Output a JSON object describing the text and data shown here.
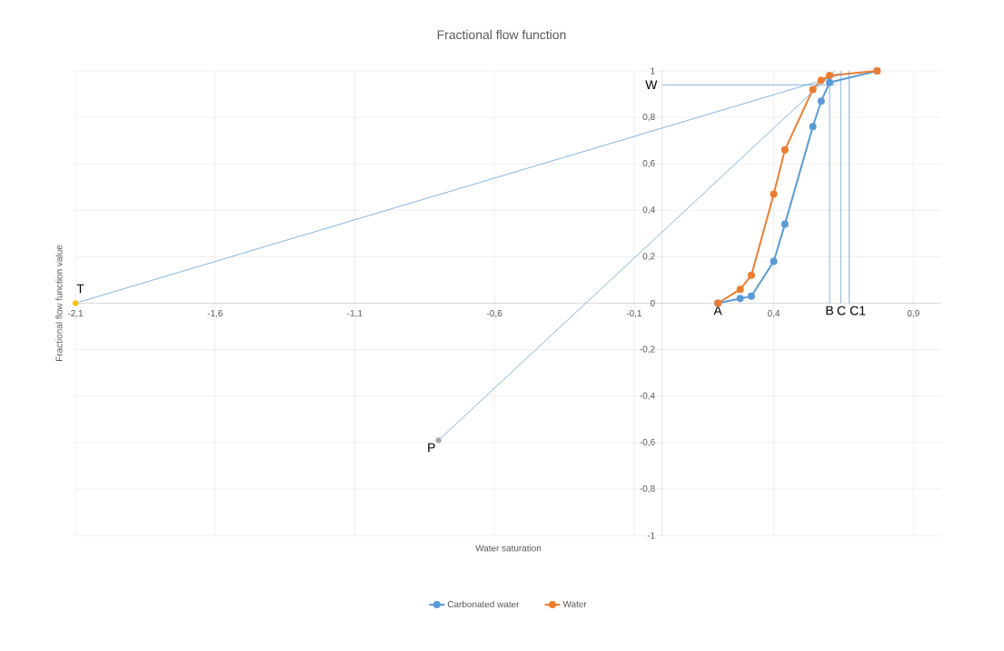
{
  "chart_data": {
    "type": "line",
    "title": "Fractional flow function",
    "xlabel": "Water saturation",
    "ylabel": "Fractional flow function value",
    "xlim": [
      -2.1,
      1.0
    ],
    "ylim": [
      -1,
      1
    ],
    "xticks": [
      {
        "value": -2.1,
        "label": "-2,1"
      },
      {
        "value": -1.6,
        "label": "-1,6"
      },
      {
        "value": -1.1,
        "label": "-1,1"
      },
      {
        "value": -0.6,
        "label": "-0,6"
      },
      {
        "value": -0.1,
        "label": "-0,1"
      },
      {
        "value": 0.4,
        "label": "0,4"
      },
      {
        "value": 0.9,
        "label": "0,9"
      }
    ],
    "yticks": [
      -1,
      {
        "value": -0.8,
        "label": "-0,8"
      },
      {
        "value": -0.6,
        "label": "-0,6"
      },
      {
        "value": -0.4,
        "label": "-0,4"
      },
      {
        "value": -0.2,
        "label": "-0,2"
      },
      0,
      {
        "value": 0.2,
        "label": "0,2"
      },
      {
        "value": 0.4,
        "label": "0,4"
      },
      {
        "value": 0.6,
        "label": "0,6"
      },
      {
        "value": 0.8,
        "label": "0,8"
      },
      1
    ],
    "grid": true,
    "legend": "bottom",
    "marker": "circle",
    "line_style": "solid",
    "series": [
      {
        "name": "Carbonated water",
        "color": "#5b9bd5",
        "x": [
          0.2,
          0.28,
          0.32,
          0.4,
          0.44,
          0.54,
          0.57,
          0.6,
          0.77
        ],
        "values": [
          0,
          0.02,
          0.03,
          0.18,
          0.34,
          0.76,
          0.87,
          0.95,
          1.0
        ]
      },
      {
        "name": "Water",
        "color": "#ed7d31",
        "x": [
          0.2,
          0.28,
          0.32,
          0.4,
          0.44,
          0.54,
          0.57,
          0.6,
          0.77
        ],
        "values": [
          0,
          0.06,
          0.12,
          0.47,
          0.66,
          0.92,
          0.96,
          0.98,
          1.0
        ]
      },
      {
        "type": "line",
        "marker": "none",
        "color": "#5b9bd5",
        "x": [
          -2.1,
          0.63
        ],
        "values": [
          0,
          0.98
        ]
      },
      {
        "type": "line",
        "marker": "none",
        "color": "#5b9bd5",
        "x": [
          -0.8,
          0.62
        ],
        "values": [
          -0.59,
          1.0
        ]
      },
      {
        "type": "line",
        "marker": "none",
        "color": "#5b9bd5",
        "x": [
          0,
          0.62
        ],
        "values": [
          0.94,
          0.94
        ]
      },
      {
        "type": "line",
        "marker": "none",
        "color": "#5b9bd5",
        "x": [
          0.6,
          0.6
        ],
        "values": [
          0,
          0.95
        ]
      },
      {
        "type": "line",
        "marker": "none",
        "color": "#5b9bd5",
        "x": [
          0.64,
          0.64
        ],
        "values": [
          0,
          1.0
        ]
      },
      {
        "type": "line",
        "marker": "none",
        "color": "#5b9bd5",
        "x": [
          0.67,
          0.67
        ],
        "values": [
          0,
          1.0
        ]
      },
      {
        "type": "scatter",
        "color": "#ffc000",
        "x": [
          -2.1
        ],
        "values": [
          0
        ]
      },
      {
        "type": "scatter",
        "color": "#a5a5a5",
        "x": [
          -0.8
        ],
        "values": [
          -0.59
        ]
      }
    ],
    "annotations": [
      {
        "text": "T",
        "x": -2.1,
        "y": 0
      },
      {
        "text": "P",
        "x": -0.8,
        "y": -0.59
      },
      {
        "text": "A",
        "x": 0.2,
        "y": 0
      },
      {
        "text": "B",
        "x": 0.6,
        "y": 0
      },
      {
        "text": "C",
        "x": 0.64,
        "y": 0
      },
      {
        "text": "C1",
        "x": 0.67,
        "y": 0
      },
      {
        "text": "W",
        "x": 0,
        "y": 0.94
      }
    ]
  }
}
